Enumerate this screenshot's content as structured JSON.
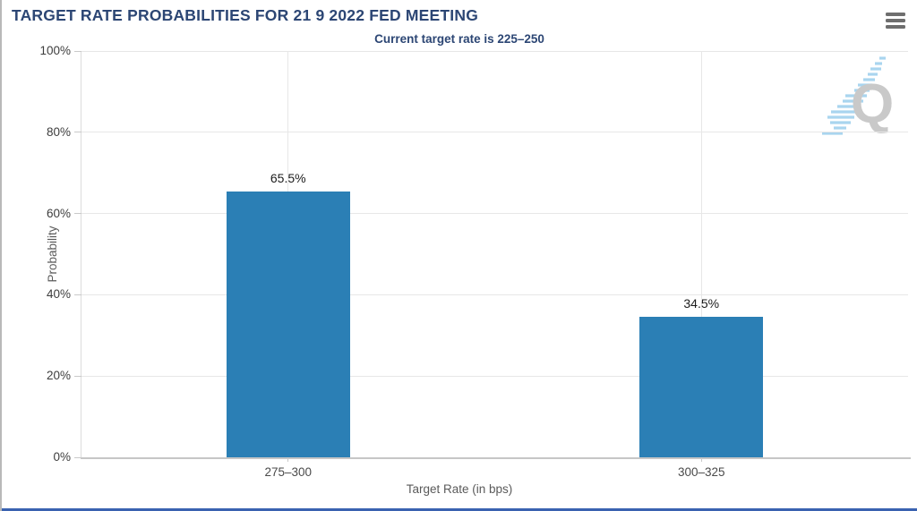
{
  "header": {
    "title": "TARGET RATE PROBABILITIES FOR 21 9 2022 FED MEETING",
    "menu_icon": "hamburger-menu-icon"
  },
  "chart_data": {
    "type": "bar",
    "title": "Current target rate is 225–250",
    "categories": [
      "275–300",
      "300–325"
    ],
    "values": [
      65.5,
      34.5
    ],
    "value_labels": [
      "65.5%",
      "34.5%"
    ],
    "xlabel": "Target Rate (in bps)",
    "ylabel": "Probability",
    "ylim": [
      0,
      100
    ],
    "yticks": [
      "0%",
      "20%",
      "40%",
      "60%",
      "80%",
      "100%"
    ],
    "grid": true,
    "legend": "none",
    "bar_color": "#2b7fb5"
  },
  "watermark": {
    "letter": "Q",
    "gray": "#c9c9c9",
    "blue": "#a9d5ef"
  },
  "colors": {
    "navy_text": "#2c4674",
    "bottom_bar": "#3a62b0",
    "bar_blue": "#2b7fb5",
    "gridline": "#e7e7e7",
    "axis_line": "#c6c6c6"
  }
}
